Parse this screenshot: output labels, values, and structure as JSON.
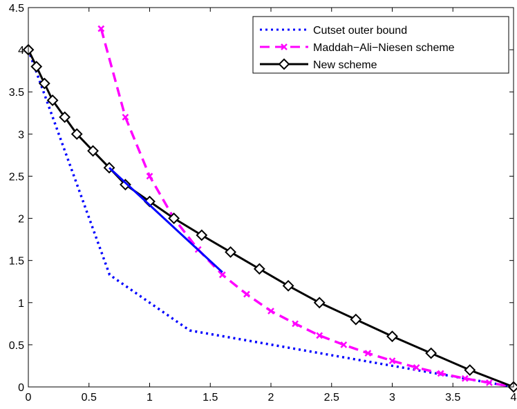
{
  "chart_data": {
    "type": "line",
    "title": "",
    "xlabel": "",
    "ylabel": "",
    "xlim": [
      0,
      4
    ],
    "ylim": [
      0,
      4.5
    ],
    "x_ticks": [
      "0",
      "0.5",
      "1",
      "1.5",
      "2",
      "2.5",
      "3",
      "3.5",
      "4"
    ],
    "y_ticks": [
      "0",
      "0.5",
      "1",
      "1.5",
      "2",
      "2.5",
      "3",
      "3.5",
      "4",
      "4.5"
    ],
    "grid": false,
    "legend_position": "top-right",
    "series": [
      {
        "name": "Cutset outer bound",
        "color": "#0000ff",
        "style": "dotted",
        "marker": "none",
        "points": [
          [
            0,
            4
          ],
          [
            0.67,
            1.33
          ],
          [
            1.33,
            0.67
          ],
          [
            4,
            0
          ]
        ]
      },
      {
        "name": "Maddah−Ali−Niesen scheme",
        "color": "#ff00ff",
        "style": "dashed",
        "marker": "x",
        "points": [
          [
            0.6,
            4.25
          ],
          [
            0.8,
            3.2
          ],
          [
            1.0,
            2.5
          ],
          [
            1.2,
            2.0
          ],
          [
            1.4,
            1.63
          ],
          [
            1.6,
            1.33
          ],
          [
            1.8,
            1.1
          ],
          [
            2.0,
            0.9
          ],
          [
            2.2,
            0.75
          ],
          [
            2.4,
            0.61
          ],
          [
            2.6,
            0.5
          ],
          [
            2.8,
            0.4
          ],
          [
            3.0,
            0.31
          ],
          [
            3.2,
            0.23
          ],
          [
            3.4,
            0.16
          ],
          [
            3.6,
            0.1
          ],
          [
            3.8,
            0.05
          ],
          [
            4.0,
            0.0
          ]
        ]
      },
      {
        "name": "New scheme",
        "color": "#000000",
        "style": "solid",
        "marker": "diamond",
        "points": [
          [
            0,
            4.0
          ],
          [
            0.067,
            3.8
          ],
          [
            0.133,
            3.6
          ],
          [
            0.2,
            3.4
          ],
          [
            0.3,
            3.2
          ],
          [
            0.4,
            3.0
          ],
          [
            0.533,
            2.8
          ],
          [
            0.667,
            2.6
          ],
          [
            0.8,
            2.4
          ],
          [
            1.0,
            2.2
          ],
          [
            1.2,
            2.0
          ],
          [
            1.429,
            1.8
          ],
          [
            1.667,
            1.6
          ],
          [
            1.905,
            1.4
          ],
          [
            2.143,
            1.2
          ],
          [
            2.4,
            1.0
          ],
          [
            2.7,
            0.8
          ],
          [
            3.0,
            0.6
          ],
          [
            3.32,
            0.4
          ],
          [
            3.64,
            0.2
          ],
          [
            4.0,
            0.0
          ]
        ]
      }
    ],
    "annotations": [
      {
        "type": "line_segment",
        "color": "#0000ff",
        "points": [
          [
            0.667,
            2.6
          ],
          [
            1.6,
            1.36
          ]
        ]
      }
    ]
  }
}
